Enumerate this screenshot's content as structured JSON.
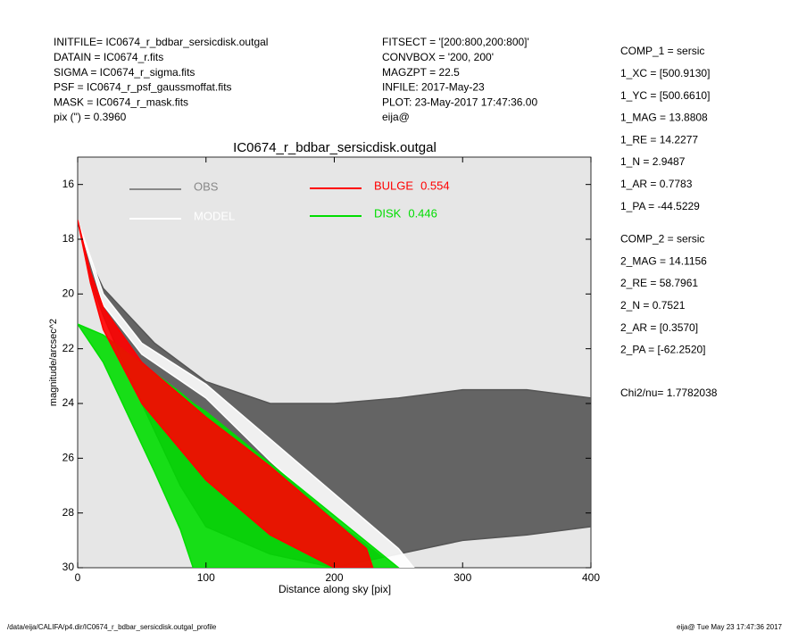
{
  "header": {
    "left": [
      "INITFILE= IC0674_r_bdbar_sersicdisk.outgal",
      "DATAIN  = IC0674_r.fits",
      "SIGMA   = IC0674_r_sigma.fits",
      "PSF     = IC0674_r_psf_gaussmoffat.fits",
      "MASK    = IC0674_r_mask.fits",
      "pix (\") =  0.3960"
    ],
    "middle": [
      "FITSECT = '[200:800,200:800]'",
      "CONVBOX = '200, 200'",
      "MAGZPT  =               22.5",
      "INFILE: 2017-May-23",
      "PLOT: 23-May-2017 17:47:36.00",
      "eija@"
    ],
    "components": [
      [
        "COMP_1  = sersic",
        "1_XC    = [500.9130]",
        "1_YC    = [500.6610]",
        "1_MAG   = 13.8808",
        "1_RE    = 14.2277",
        "1_N     = 2.9487",
        "1_AR    = 0.7783",
        "1_PA    = -44.5229"
      ],
      [
        "COMP_2  = sersic",
        "2_MAG   = 14.1156",
        "2_RE    = 58.7961",
        "2_N     = 0.7521",
        "2_AR    = [0.3570]",
        "2_PA    = [-62.2520]"
      ]
    ],
    "chi2": "Chi2/nu=       1.7782038"
  },
  "footer": {
    "left": "/data/eija/CALIFA/p4.dir/IC0674_r_bdbar_sersicdisk.outgal_profile",
    "right": "eija@  Tue May 23 17:47:36 2017"
  },
  "chart_data": {
    "type": "band",
    "title": "IC0674_r_bdbar_sersicdisk.outgal",
    "xlabel": "Distance along sky [pix]",
    "ylabel": "magnitude/arcsec^2",
    "xlim": [
      0,
      400
    ],
    "xticks": [
      0,
      100,
      200,
      300,
      400
    ],
    "ylim": [
      30,
      15
    ],
    "yticks": [
      16,
      18,
      20,
      22,
      24,
      26,
      28,
      30
    ],
    "background": "#e6e6e6",
    "series": [
      {
        "name": "OBS",
        "color": "#555555",
        "legend_color": "#888888",
        "x": [
          0,
          10,
          20,
          40,
          60,
          80,
          100,
          150,
          200,
          250,
          300,
          350,
          400
        ],
        "y_top": [
          17.3,
          18.8,
          19.8,
          20.8,
          21.8,
          22.5,
          23.2,
          24.0,
          24.0,
          23.8,
          23.5,
          23.5,
          23.8
        ],
        "y_bottom": [
          17.3,
          19.5,
          20.8,
          23,
          25,
          27,
          28.5,
          29.5,
          30,
          29.5,
          29,
          28.8,
          28.5
        ]
      },
      {
        "name": "MODEL",
        "color": "#ffffff",
        "legend_color": "#ffffff",
        "x": [
          0,
          20,
          50,
          100,
          150,
          200,
          250,
          262
        ],
        "y_top": [
          17.3,
          20.0,
          21.8,
          23.3,
          25.3,
          27.3,
          29.3,
          30
        ],
        "y_bottom": [
          17.3,
          20.4,
          22.2,
          23.8,
          26.1,
          28.2,
          30,
          30
        ]
      },
      {
        "name": "DISK",
        "fraction": 0.446,
        "color": "#00dd00",
        "legend_color": "#00dd00",
        "x": [
          0,
          20,
          40,
          60,
          80,
          90,
          100,
          150,
          200,
          250
        ],
        "y_top": [
          21.1,
          21.5,
          22.2,
          22.9,
          23.6,
          24.0,
          24.3,
          26.2,
          28.1,
          30
        ],
        "y_bottom": [
          21.1,
          22.5,
          24.5,
          26.5,
          28.6,
          30,
          30,
          30,
          30,
          30
        ]
      },
      {
        "name": "BULGE",
        "fraction": 0.554,
        "color": "#ff0000",
        "legend_color": "#ff0000",
        "x": [
          0,
          10,
          20,
          50,
          100,
          150,
          200,
          225,
          230
        ],
        "y_top": [
          17.3,
          19.2,
          20.5,
          22.5,
          24.5,
          26.3,
          28.3,
          29.3,
          30
        ],
        "y_bottom": [
          17.3,
          19.6,
          21.3,
          24,
          26.8,
          28.8,
          30,
          30,
          30
        ]
      }
    ]
  }
}
